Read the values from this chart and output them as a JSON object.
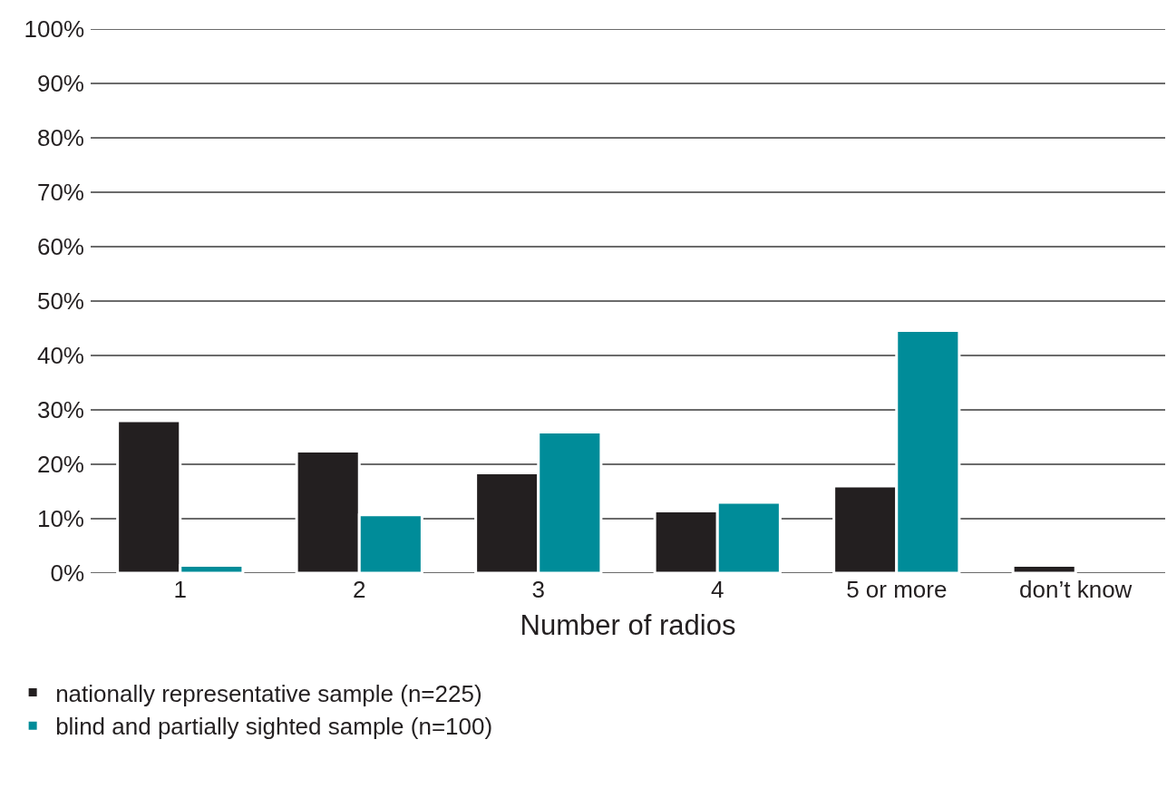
{
  "chart_data": {
    "type": "bar",
    "xlabel": "Number of radios",
    "categories": [
      "1",
      "2",
      "3",
      "4",
      "5 or more",
      "don’t know"
    ],
    "series": [
      {
        "name": "nationally representative sample (n=225)",
        "color": "#231f20",
        "values": [
          28,
          22.4,
          18.4,
          11.4,
          16,
          1.4
        ]
      },
      {
        "name": "blind and partially sighted sample (n=100)",
        "color": "#008c99",
        "values": [
          1.4,
          10.7,
          25.9,
          13,
          44.6,
          null
        ]
      }
    ],
    "ylim": [
      0,
      100
    ],
    "yticks": [
      {
        "value": 0,
        "label": "0%"
      },
      {
        "value": 10,
        "label": "10%"
      },
      {
        "value": 20,
        "label": "20%"
      },
      {
        "value": 30,
        "label": "30%"
      },
      {
        "value": 40,
        "label": "40%"
      },
      {
        "value": 50,
        "label": "50%"
      },
      {
        "value": 60,
        "label": "60%"
      },
      {
        "value": 70,
        "label": "70%"
      },
      {
        "value": 80,
        "label": "80%"
      },
      {
        "value": 90,
        "label": "90%"
      },
      {
        "value": 100,
        "label": "100%"
      }
    ],
    "grid": "y",
    "legend": "bottom left"
  }
}
